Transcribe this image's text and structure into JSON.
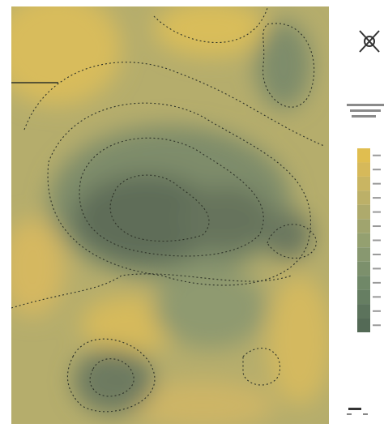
{
  "map": {
    "legend": {
      "colors": [
        "#e0be50",
        "#d6b95a",
        "#c9b562",
        "#bcb068",
        "#aeaa6c",
        "#a0a46e",
        "#94a070",
        "#889870",
        "#7c906c",
        "#708868",
        "#667e62",
        "#5c735c",
        "#546a56"
      ]
    }
  }
}
